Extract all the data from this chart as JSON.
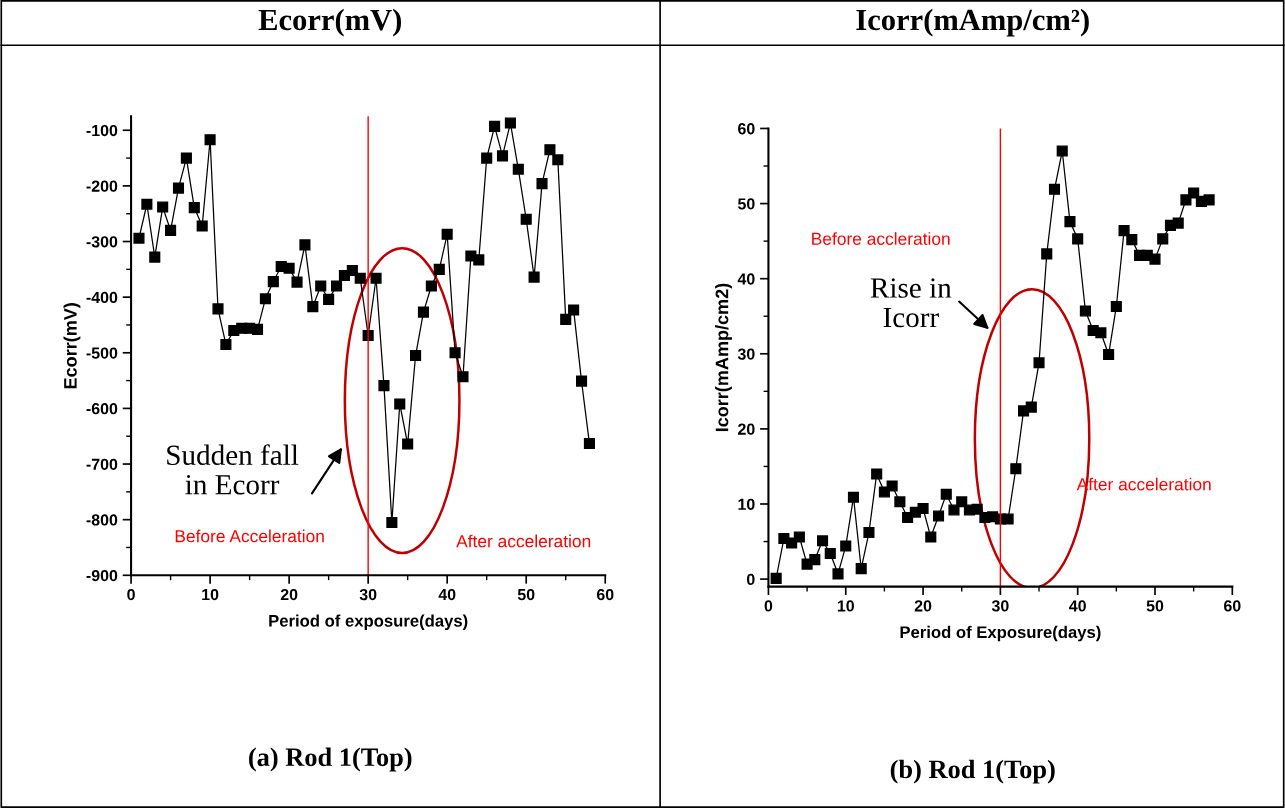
{
  "chart_data": [
    {
      "type": "line",
      "title": "Ecorr(mV)",
      "xlabel": "Period of exposure(days)",
      "ylabel": "Ecorr(mV)",
      "marker": "square",
      "line_style": "solid",
      "grid": false,
      "x": [
        1,
        2,
        3,
        4,
        5,
        6,
        7,
        8,
        9,
        10,
        11,
        12,
        13,
        14,
        15,
        16,
        17,
        18,
        19,
        20,
        21,
        22,
        23,
        24,
        25,
        26,
        27,
        28,
        29,
        30,
        31,
        32,
        33,
        34,
        35,
        36,
        37,
        38,
        39,
        40,
        41,
        42,
        43,
        44,
        45,
        46,
        47,
        48,
        49,
        50,
        51,
        52,
        53,
        54,
        55,
        56,
        57,
        58
      ],
      "series": [
        {
          "color": "#000000",
          "values": [
            -294,
            -233,
            -328,
            -238,
            -280,
            -204,
            -150,
            -239,
            -272,
            -117,
            -421,
            -485,
            -460,
            -456,
            -456,
            -458,
            -403,
            -372,
            -345,
            -348,
            -373,
            -306,
            -417,
            -380,
            -404,
            -380,
            -361,
            -352,
            -366,
            -469,
            -366,
            -559,
            -805,
            -592,
            -664,
            -505,
            -427,
            -380,
            -350,
            -287,
            -500,
            -543,
            -326,
            -333,
            -150,
            -93,
            -146,
            -87,
            -170,
            -260,
            -364,
            -196,
            -135,
            -153,
            -440,
            -423,
            -551,
            -663
          ]
        }
      ],
      "xlim": [
        0,
        60
      ],
      "xticks": [
        0,
        10,
        20,
        30,
        40,
        50,
        60
      ],
      "ylim": [
        -900,
        -75
      ],
      "yticks": [
        -900,
        -800,
        -700,
        -600,
        -500,
        -400,
        -300,
        -200,
        -100
      ],
      "ref_lines": [
        {
          "axis": "x",
          "value": 30,
          "color": "#ff0000"
        }
      ],
      "annotations": [
        "Sudden fall\nin Ecorr",
        "Before Acceleration",
        "After acceleration",
        "(a) Rod 1(Top)"
      ]
    },
    {
      "type": "line",
      "title": "Icorr(mAmp/cm²)",
      "xlabel": "Period of Exposure(days)",
      "ylabel": "Icorr(mAmp/cm2)",
      "marker": "square",
      "line_style": "solid",
      "grid": false,
      "x": [
        1,
        2,
        3,
        4,
        5,
        6,
        7,
        8,
        9,
        10,
        11,
        12,
        13,
        14,
        15,
        16,
        17,
        18,
        19,
        20,
        21,
        22,
        23,
        24,
        25,
        26,
        27,
        28,
        29,
        30,
        31,
        32,
        33,
        34,
        35,
        36,
        37,
        38,
        39,
        40,
        41,
        42,
        43,
        44,
        45,
        46,
        47,
        48,
        49,
        50,
        51,
        52,
        53,
        54,
        55,
        56,
        57
      ],
      "series": [
        {
          "color": "#000000",
          "values": [
            0.1,
            5.4,
            4.8,
            5.6,
            2.0,
            2.6,
            5.1,
            3.4,
            0.7,
            4.4,
            10.9,
            1.4,
            6.2,
            14.0,
            11.6,
            12.4,
            10.3,
            8.2,
            8.9,
            9.4,
            5.6,
            8.4,
            11.3,
            9.2,
            10.3,
            9.2,
            9.3,
            8.2,
            8.3,
            8.0,
            8.0,
            14.7,
            22.4,
            22.9,
            28.8,
            43.3,
            51.9,
            57.0,
            47.6,
            45.3,
            35.7,
            33.1,
            32.8,
            29.9,
            36.3,
            46.4,
            45.2,
            43.1,
            43.1,
            42.6,
            45.3,
            47.1,
            47.4,
            50.5,
            51.4,
            50.3,
            50.5
          ]
        }
      ],
      "xlim": [
        0,
        60
      ],
      "xticks": [
        0,
        10,
        20,
        30,
        40,
        50,
        60
      ],
      "ylim": [
        -1,
        60
      ],
      "yticks": [
        0,
        10,
        20,
        30,
        40,
        50,
        60
      ],
      "ref_lines": [
        {
          "axis": "x",
          "value": 30,
          "color": "#ff0000"
        }
      ],
      "annotations": [
        "Before accleration",
        "Rise in\nIcorr",
        "After acceleration",
        "(b) Rod 1(Top)"
      ]
    }
  ]
}
